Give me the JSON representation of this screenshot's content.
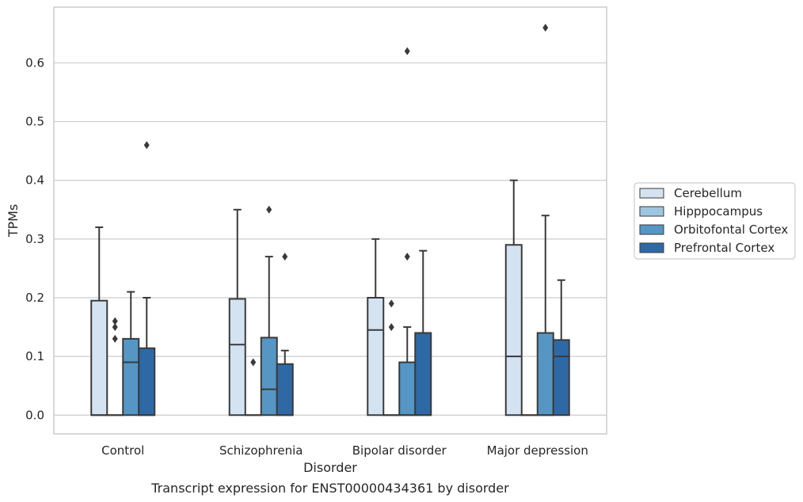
{
  "chart_data": {
    "type": "box",
    "title": "",
    "caption": "Transcript expression for ENST00000434361 by disorder",
    "xlabel": "Disorder",
    "ylabel": "TPMs",
    "ylim": [
      -0.032,
      0.695
    ],
    "yticks": [
      "0.0",
      "0.1",
      "0.2",
      "0.3",
      "0.4",
      "0.5",
      "0.6"
    ],
    "grid": "horizontal",
    "legend_position": "right",
    "categories": [
      "Control",
      "Schizophrenia",
      "Bipolar disorder",
      "Major depression"
    ],
    "series": [
      {
        "name": "Cerebellum",
        "color": "#d4e3f2",
        "boxes": [
          {
            "q1": 0.0,
            "median": 0.0,
            "q3": 0.195,
            "whisker_low": 0.0,
            "whisker_high": 0.32,
            "outliers": []
          },
          {
            "q1": 0.0,
            "median": 0.12,
            "q3": 0.198,
            "whisker_low": 0.0,
            "whisker_high": 0.35,
            "outliers": []
          },
          {
            "q1": 0.0,
            "median": 0.145,
            "q3": 0.2,
            "whisker_low": 0.0,
            "whisker_high": 0.3,
            "outliers": []
          },
          {
            "q1": 0.0,
            "median": 0.1,
            "q3": 0.29,
            "whisker_low": 0.0,
            "whisker_high": 0.4,
            "outliers": []
          }
        ]
      },
      {
        "name": "Hipppocampus",
        "color": "#9ec5e0",
        "boxes": [
          {
            "q1": 0.0,
            "median": 0.0,
            "q3": 0.0,
            "whisker_low": 0.0,
            "whisker_high": 0.0,
            "outliers": [
              0.13,
              0.15,
              0.16
            ]
          },
          {
            "q1": 0.0,
            "median": 0.0,
            "q3": 0.0,
            "whisker_low": 0.0,
            "whisker_high": 0.0,
            "outliers": [
              0.09
            ]
          },
          {
            "q1": 0.0,
            "median": 0.0,
            "q3": 0.0,
            "whisker_low": 0.0,
            "whisker_high": 0.0,
            "outliers": [
              0.15,
              0.19
            ]
          },
          {
            "q1": 0.0,
            "median": 0.0,
            "q3": 0.0,
            "whisker_low": 0.0,
            "whisker_high": 0.0,
            "outliers": []
          }
        ]
      },
      {
        "name": "Orbitofontal Cortex",
        "color": "#5596c4",
        "boxes": [
          {
            "q1": 0.0,
            "median": 0.09,
            "q3": 0.13,
            "whisker_low": 0.0,
            "whisker_high": 0.21,
            "outliers": []
          },
          {
            "q1": 0.0,
            "median": 0.044,
            "q3": 0.132,
            "whisker_low": 0.0,
            "whisker_high": 0.27,
            "outliers": [
              0.35
            ]
          },
          {
            "q1": 0.0,
            "median": 0.0,
            "q3": 0.09,
            "whisker_low": 0.0,
            "whisker_high": 0.15,
            "outliers": [
              0.27,
              0.62
            ]
          },
          {
            "q1": 0.0,
            "median": 0.0,
            "q3": 0.14,
            "whisker_low": 0.0,
            "whisker_high": 0.34,
            "outliers": [
              0.66
            ]
          }
        ]
      },
      {
        "name": "Prefrontal Cortex",
        "color": "#2e69a6",
        "boxes": [
          {
            "q1": 0.0,
            "median": 0.0,
            "q3": 0.114,
            "whisker_low": 0.0,
            "whisker_high": 0.2,
            "outliers": [
              0.46
            ]
          },
          {
            "q1": 0.0,
            "median": 0.0,
            "q3": 0.087,
            "whisker_low": 0.0,
            "whisker_high": 0.11,
            "outliers": [
              0.27
            ]
          },
          {
            "q1": 0.0,
            "median": 0.0,
            "q3": 0.14,
            "whisker_low": 0.0,
            "whisker_high": 0.28,
            "outliers": []
          },
          {
            "q1": 0.0,
            "median": 0.1,
            "q3": 0.128,
            "whisker_low": 0.0,
            "whisker_high": 0.23,
            "outliers": []
          }
        ]
      }
    ]
  }
}
